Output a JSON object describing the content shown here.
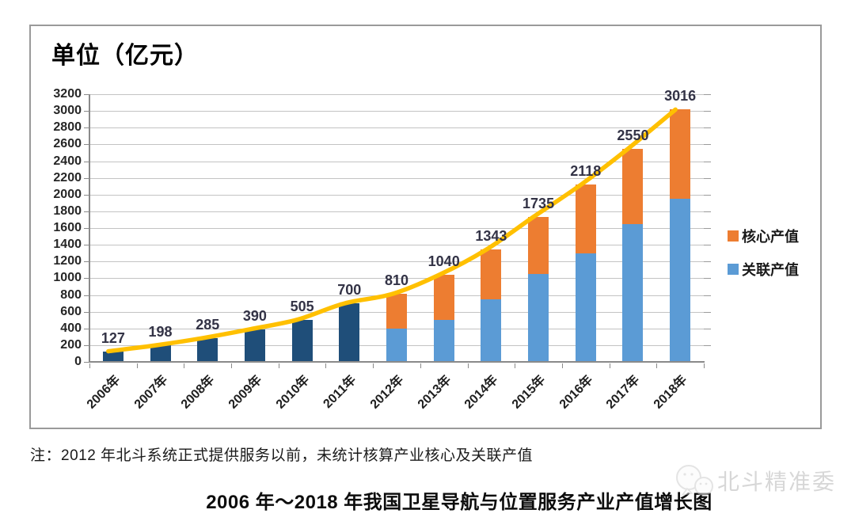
{
  "page": {
    "unit_title": "单位（亿元）",
    "note": "注：2012 年北斗系统正式提供服务以前，未统计核算产业核心及关联产值",
    "caption": "2006 年～2018 年我国卫星导航与位置服务产业产值增长图",
    "watermark_text": "北斗精准委"
  },
  "chart_data": {
    "type": "bar",
    "subtype": "stacked-bars-with-smooth-trendline",
    "title": "单位（亿元）",
    "categories": [
      "2006年",
      "2007年",
      "2008年",
      "2009年",
      "2010年",
      "2011年",
      "2012年",
      "2013年",
      "2014年",
      "2015年",
      "2016年",
      "2017年",
      "2018年"
    ],
    "totals": [
      127,
      198,
      285,
      390,
      505,
      700,
      810,
      1040,
      1343,
      1735,
      2118,
      2550,
      3016
    ],
    "data_labels": [
      "127",
      "198",
      "285",
      "390",
      "505",
      "700",
      "810",
      "1040",
      "1343",
      "1735",
      "2118",
      "2550",
      "3016"
    ],
    "series": [
      {
        "name": "关联产值",
        "color": "#5B9BD5",
        "values": [
          null,
          null,
          null,
          null,
          null,
          null,
          400,
          500,
          750,
          1050,
          1300,
          1650,
          1950
        ]
      },
      {
        "name": "核心产值",
        "color": "#ED7D31",
        "values": [
          null,
          null,
          null,
          null,
          null,
          null,
          410,
          540,
          593,
          685,
          818,
          900,
          1066
        ]
      }
    ],
    "pre_service_bar_color": "#1F4E79",
    "trendline": {
      "color": "#FFC000",
      "through": "totals"
    },
    "ylim": [
      0,
      3200
    ],
    "ytick_step": 200,
    "grid": true,
    "legend_position": "right-inside",
    "legend": [
      {
        "label": "核心产值",
        "color": "#ED7D31",
        "key": "core"
      },
      {
        "label": "关联产值",
        "color": "#5B9BD5",
        "key": "related"
      }
    ],
    "colors": {
      "grid": "#c3c3c3",
      "axis": "#8a8a8a",
      "data_label": "#333346",
      "tick_label": "#262626"
    }
  }
}
